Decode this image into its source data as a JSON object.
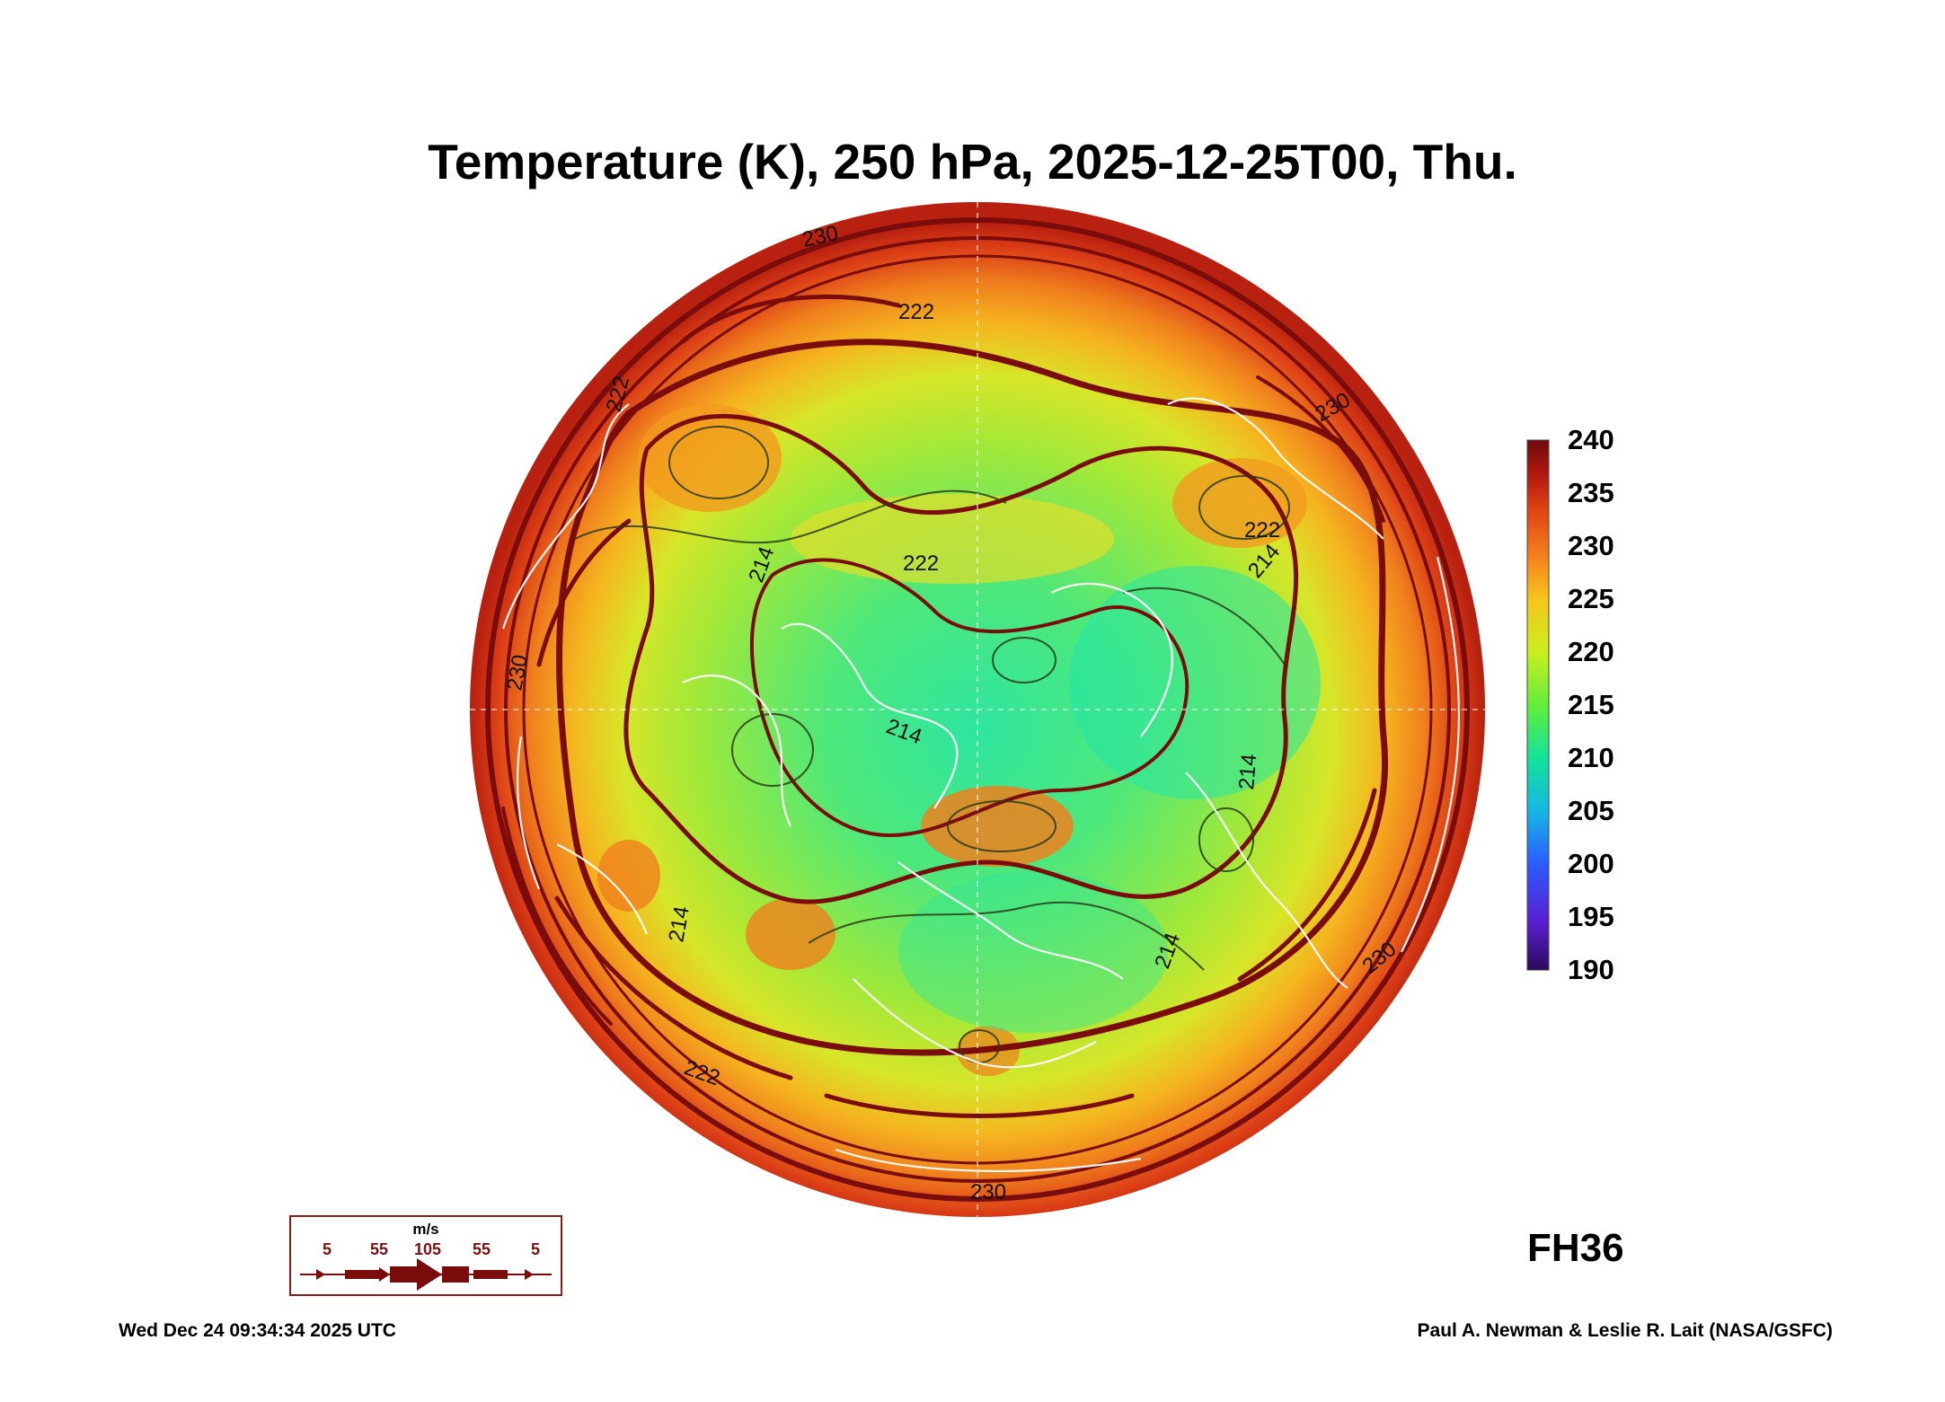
{
  "title": "Temperature (K), 250 hPa, 2025-12-25T00, Thu.",
  "colorbar": {
    "labels": [
      "240",
      "235",
      "230",
      "225",
      "220",
      "215",
      "210",
      "205",
      "200",
      "195",
      "190"
    ],
    "min": 190,
    "max": 240,
    "stops": [
      "#2b0a5e",
      "#5a1fd0",
      "#2a5cff",
      "#16b7e3",
      "#12e39a",
      "#63ee3a",
      "#c9ef1d",
      "#f7c51b",
      "#f6801c",
      "#e24a15",
      "#b61a10",
      "#6e0a0a"
    ]
  },
  "contour_labels": [
    "230",
    "222",
    "222",
    "222",
    "222",
    "214",
    "214",
    "214",
    "214",
    "230",
    "230",
    "230",
    "222",
    "214",
    "214",
    "230"
  ],
  "forecast_hour": "FH36",
  "wind_legend": {
    "unit": "m/s",
    "speeds": [
      "5",
      "55",
      "105",
      "55",
      "5"
    ]
  },
  "footer": {
    "timestamp": "Wed Dec 24 09:34:34 2025 UTC",
    "credit": "Paul A. Newman & Leslie R. Lait (NASA/GSFC)"
  },
  "map_colors": {
    "outer_ring": "#d8391a",
    "warm_band": "#f39a1e",
    "mid_band": "#9fe83a",
    "core": "#2ee6a0",
    "streamline": "#7a0c0c",
    "coastline": "#ffffff"
  }
}
